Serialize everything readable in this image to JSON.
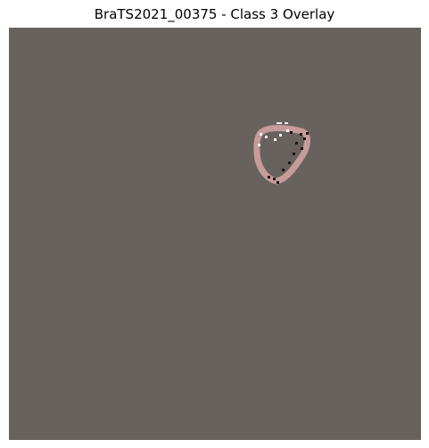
{
  "figure": {
    "title": "BraTS2021_00375 - Class 3 Overlay"
  },
  "colors": {
    "background_slice": "#67625e",
    "overlay_mask": "#c79a9b",
    "edge_dark": "#1f1416",
    "edge_light": "#f4eeee"
  }
}
